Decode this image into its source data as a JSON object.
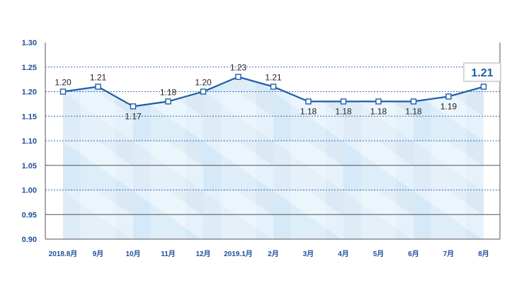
{
  "chart_data": {
    "type": "line",
    "title": "",
    "xlabel": "",
    "ylabel": "",
    "categories": [
      "2018.8月",
      "9月",
      "10月",
      "11月",
      "12月",
      "2019.1月",
      "2月",
      "3月",
      "4月",
      "5月",
      "6月",
      "7月",
      "8月"
    ],
    "series": [
      {
        "values": [
          1.2,
          1.21,
          1.17,
          1.18,
          1.2,
          1.23,
          1.21,
          1.18,
          1.18,
          1.18,
          1.18,
          1.19,
          1.21
        ]
      }
    ],
    "data_labels": [
      "1.20",
      "1.21",
      "1.17",
      "1.18",
      "1.20",
      "1.23",
      "1.21",
      "1.18",
      "1.18",
      "1.18",
      "1.18",
      "1.19",
      "1.21"
    ],
    "highlight_label": "1.21",
    "ylim": [
      0.9,
      1.3
    ],
    "yticks": [
      "0.90",
      "0.95",
      "1.00",
      "1.05",
      "1.10",
      "1.15",
      "1.20",
      "1.25",
      "1.30"
    ],
    "grid": true,
    "legend": "none",
    "colors": {
      "line": "#1f5ca8",
      "axis_text": "#1f4e9a",
      "grid_dotted": "#3a6fb5",
      "grid_solid": "#555555",
      "fill_light": "#e6f2fb",
      "fill_mid": "#cfe6f7"
    }
  }
}
